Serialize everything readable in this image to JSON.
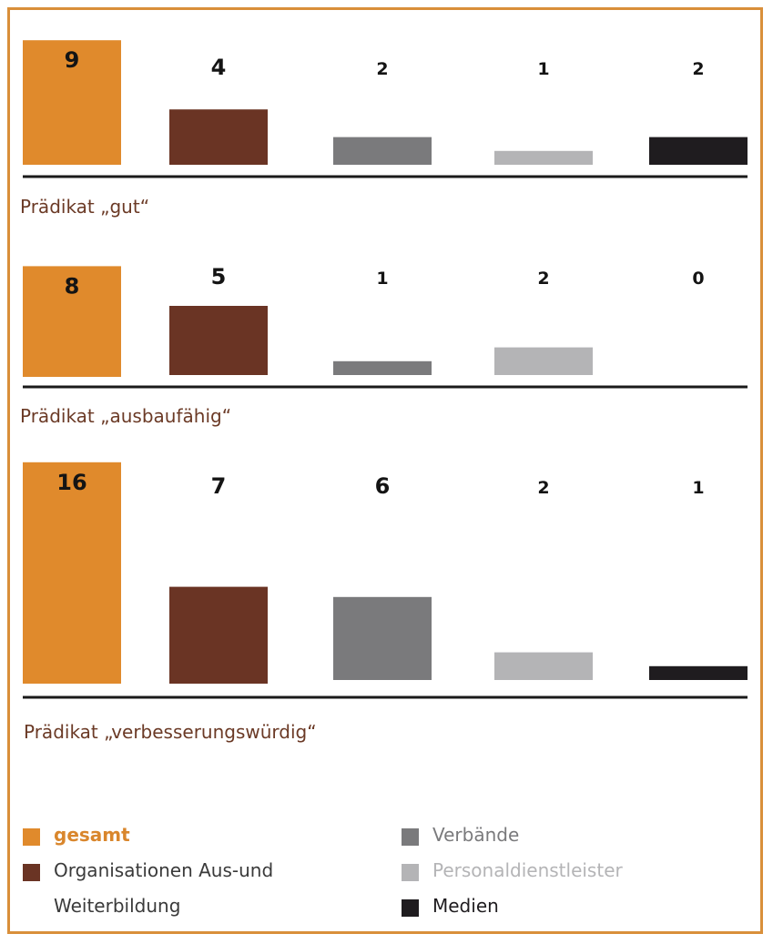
{
  "chart_data": {
    "type": "bar",
    "categories": [
      "gesamt",
      "Organisationen Aus-und Weiterbildung",
      "Verbände",
      "Personaldienstleister",
      "Medien"
    ],
    "colors": [
      "#e08a2c",
      "#6a3424",
      "#7a7a7c",
      "#b4b4b6",
      "#1f1c1f"
    ],
    "label_colors": [
      "#141414",
      "#141414",
      "#141414",
      "#141414",
      "#141414"
    ],
    "panels": [
      {
        "name": "Prädikat „gut“",
        "values": [
          9,
          4,
          2,
          1,
          2
        ]
      },
      {
        "name": "Prädikat „ausbaufähig“",
        "values": [
          8,
          5,
          1,
          2,
          0
        ]
      },
      {
        "name": "Prädikat „verbesserungswürdig“",
        "values": [
          16,
          7,
          6,
          2,
          1
        ]
      }
    ],
    "legend": [
      {
        "label": "gesamt",
        "color": "#e08a2c",
        "text_color": "#d9862c",
        "bold": true
      },
      {
        "label": "Organisationen Aus-und\nWeiterbildung",
        "color": "#6a3424",
        "text_color": "#3a3a3a",
        "bold": false
      },
      {
        "label": "Verbände",
        "color": "#7a7a7c",
        "text_color": "#7a7a7c",
        "bold": false
      },
      {
        "label": "Personaldienstleister",
        "color": "#b4b4b6",
        "text_color": "#b4b4b6",
        "bold": false
      },
      {
        "label": "Medien",
        "color": "#1f1c1f",
        "text_color": "#1f1c1f",
        "bold": false
      }
    ]
  }
}
